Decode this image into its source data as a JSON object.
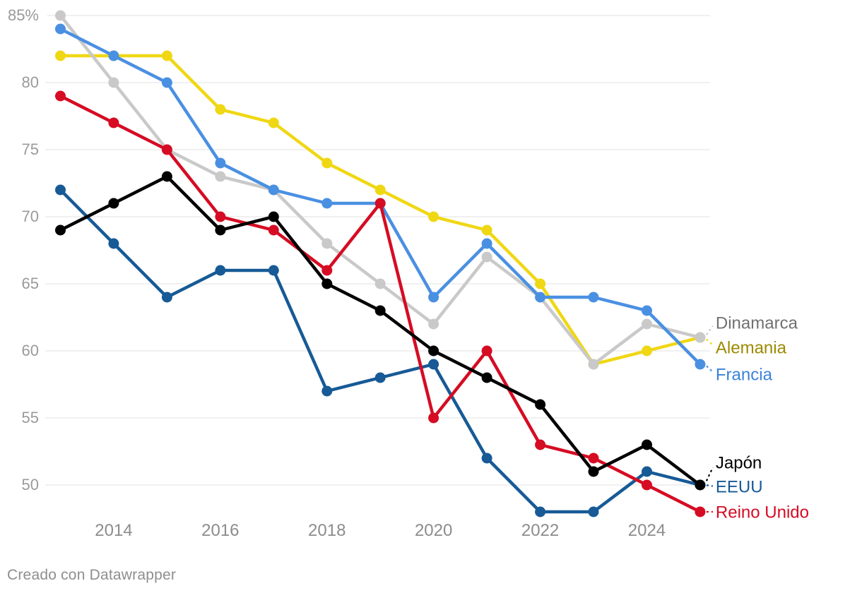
{
  "chart_data": {
    "type": "line",
    "title": "",
    "x": [
      2013,
      2014,
      2015,
      2016,
      2017,
      2018,
      2019,
      2020,
      2021,
      2022,
      2023,
      2024,
      2025
    ],
    "x_ticks": [
      2014,
      2016,
      2018,
      2020,
      2022,
      2024
    ],
    "x_tick_labels": [
      "2014",
      "2016",
      "2018",
      "2020",
      "2022",
      "2024"
    ],
    "y_ticks": [
      85,
      80,
      75,
      70,
      65,
      60,
      55,
      50
    ],
    "y_tick_labels": [
      "85%",
      "80",
      "75",
      "70",
      "65",
      "60",
      "55",
      "50"
    ],
    "ylim": [
      48,
      85
    ],
    "grid": "horizontal-only",
    "legend_position": "direct-labels-right",
    "series": [
      {
        "name": "Alemania",
        "color": "#f0d714",
        "label_color": "#9c8a00",
        "label_dy": 14,
        "values": [
          82,
          82,
          82,
          78,
          77,
          74,
          72,
          70,
          69,
          65,
          59,
          60,
          61
        ]
      },
      {
        "name": "Dinamarca",
        "color": "#c9c9c9",
        "label_color": "#707070",
        "label_dy": -21,
        "values": [
          85,
          80,
          75,
          73,
          72,
          68,
          65,
          62,
          67,
          64,
          59,
          62,
          61
        ]
      },
      {
        "name": "Francia",
        "color": "#4a90e2",
        "label_color": "#3b82d9",
        "label_dy": 14,
        "values": [
          84,
          82,
          80,
          74,
          72,
          71,
          71,
          64,
          68,
          64,
          64,
          63,
          59
        ]
      },
      {
        "name": "EEUU",
        "color": "#175a96",
        "label_color": "#175a96",
        "label_dy": 2,
        "values": [
          72,
          68,
          64,
          66,
          66,
          57,
          58,
          59,
          52,
          48,
          48,
          51,
          50
        ]
      },
      {
        "name": "Reino Unido",
        "color": "#d50c23",
        "label_color": "#d50c23",
        "label_dy": 0,
        "values": [
          79,
          77,
          75,
          70,
          69,
          66,
          71,
          55,
          60,
          53,
          52,
          50,
          48
        ]
      },
      {
        "name": "Japón",
        "color": "#000000",
        "label_color": "#000000",
        "label_dy": -32,
        "values": [
          69,
          71,
          73,
          69,
          70,
          65,
          63,
          60,
          58,
          56,
          51,
          53,
          50
        ]
      }
    ]
  },
  "footer": {
    "credit": "Creado con Datawrapper"
  }
}
